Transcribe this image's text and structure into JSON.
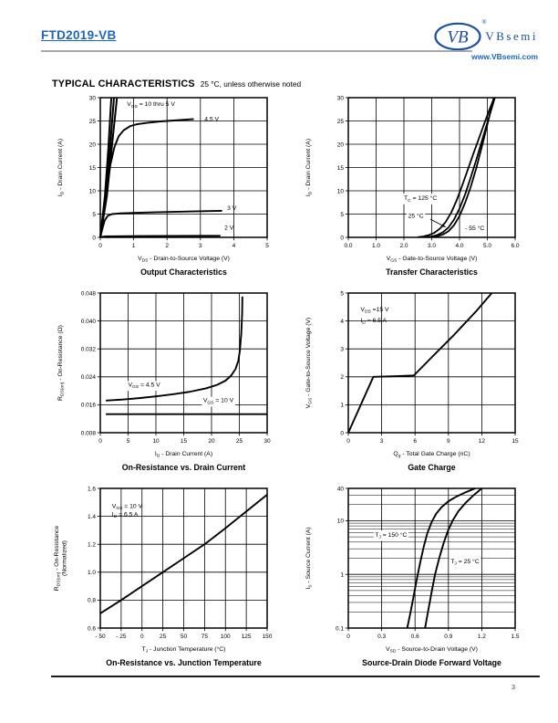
{
  "colors": {
    "link_blue": "#1a66c2",
    "logo_blue": "#1d4f9d",
    "rule_gray": "#a7a9ac",
    "chart_ink": "#000000",
    "page_bg": "#ffffff"
  },
  "header": {
    "part_number": "FTD2019-VB",
    "logo": {
      "mark": "VB",
      "name": "VBsemi",
      "registered": "®",
      "url": "www.VBsemi.com"
    }
  },
  "section": {
    "title": "TYPICAL CHARACTERISTICS",
    "subtitle": "25 °C, unless otherwise noted"
  },
  "footer": {
    "page_number": "3"
  },
  "chart_data": [
    {
      "type": "line",
      "name": "output-characteristics",
      "title": "Output Characteristics",
      "xlabel": "V~DS~ - Drain-to-Source Voltage (V)",
      "ylabel": "I~D~ - Drain Current (A)",
      "xlim": [
        0,
        5
      ],
      "ylim": [
        0,
        30
      ],
      "ylog": false,
      "xticks": [
        0,
        1,
        2,
        3,
        4,
        5
      ],
      "xtick_labels": [
        "0",
        "1",
        "2",
        "3",
        "4",
        "5"
      ],
      "yticks": [
        0,
        5,
        10,
        15,
        20,
        25,
        30
      ],
      "ytick_labels": [
        "0",
        "5",
        "10",
        "15",
        "20",
        "25",
        "30"
      ],
      "yminor": [],
      "series": [
        {
          "name": "VGS = 10 thru 5 V (a)",
          "width": 2.0,
          "points": [
            [
              0,
              0
            ],
            [
              0.14,
              9
            ],
            [
              0.24,
              19
            ],
            [
              0.33,
              30
            ]
          ]
        },
        {
          "name": "VGS = 10 thru 5 V (b)",
          "width": 2.0,
          "points": [
            [
              0,
              0
            ],
            [
              0.17,
              9
            ],
            [
              0.29,
              19
            ],
            [
              0.41,
              30
            ]
          ]
        },
        {
          "name": "VGS = 10 thru 5 V (c)",
          "width": 2.0,
          "points": [
            [
              0,
              0
            ],
            [
              0.2,
              9
            ],
            [
              0.34,
              19
            ],
            [
              0.5,
              30
            ]
          ]
        },
        {
          "name": "VGS = 4.5 V",
          "width": 1.9,
          "points": [
            [
              0,
              0
            ],
            [
              0.1,
              5
            ],
            [
              0.2,
              10.5
            ],
            [
              0.3,
              15.5
            ],
            [
              0.42,
              19.3
            ],
            [
              0.55,
              21.7
            ],
            [
              0.7,
              23
            ],
            [
              0.9,
              23.9
            ],
            [
              1.1,
              24.3
            ],
            [
              1.4,
              24.6
            ],
            [
              1.8,
              24.9
            ],
            [
              2.2,
              25.1
            ],
            [
              2.6,
              25.3
            ],
            [
              2.8,
              25.4
            ]
          ]
        },
        {
          "name": "VGS = 3 V",
          "width": 1.9,
          "points": [
            [
              0,
              0
            ],
            [
              0.06,
              1.8
            ],
            [
              0.13,
              3.6
            ],
            [
              0.22,
              4.6
            ],
            [
              0.35,
              5.0
            ],
            [
              0.6,
              5.15
            ],
            [
              1.0,
              5.25
            ],
            [
              1.6,
              5.38
            ],
            [
              2.2,
              5.48
            ],
            [
              2.8,
              5.58
            ],
            [
              3.3,
              5.65
            ],
            [
              3.65,
              5.7
            ]
          ]
        },
        {
          "name": "VGS = 2 V",
          "width": 1.9,
          "points": [
            [
              0,
              0
            ],
            [
              0.05,
              0.12
            ],
            [
              0.15,
              0.2
            ],
            [
              0.5,
              0.24
            ],
            [
              1.2,
              0.27
            ],
            [
              2.2,
              0.3
            ],
            [
              3.0,
              0.32
            ],
            [
              3.6,
              0.34
            ]
          ]
        }
      ],
      "annotations": [
        {
          "text": "V~GS~ = 10 thru 5 V",
          "x": 0.8,
          "y": 28.2,
          "bg": false
        },
        {
          "text": "4.5 V",
          "x": 3.12,
          "y": 25.0,
          "bg": false
        },
        {
          "text": "3 V",
          "x": 3.8,
          "y": 5.85,
          "bg": false
        },
        {
          "text": "2 V",
          "x": 3.72,
          "y": 1.7,
          "bg": false
        }
      ],
      "arrows": []
    },
    {
      "type": "line",
      "name": "transfer-characteristics",
      "title": "Transfer Characteristics",
      "xlabel": "V~GS~ - Gate-to-Source Voltage (V)",
      "ylabel": "I~D~ - Drain Current (A)",
      "xlim": [
        0,
        6
      ],
      "ylim": [
        0,
        30
      ],
      "ylog": false,
      "xticks": [
        0,
        1,
        2,
        3,
        4,
        5,
        6
      ],
      "xtick_labels": [
        "0.0",
        "1.0",
        "2.0",
        "3.0",
        "4.0",
        "5.0",
        "6.0"
      ],
      "yticks": [
        0,
        5,
        10,
        15,
        20,
        25,
        30
      ],
      "ytick_labels": [
        "0",
        "5",
        "10",
        "15",
        "20",
        "25",
        "30"
      ],
      "yminor": [],
      "series": [
        {
          "name": "TC = 125 °C",
          "width": 1.8,
          "points": [
            [
              2.5,
              0.05
            ],
            [
              2.7,
              0.2
            ],
            [
              2.9,
              0.5
            ],
            [
              3.1,
              1.0
            ],
            [
              3.3,
              1.9
            ],
            [
              3.5,
              3.3
            ],
            [
              3.7,
              5.3
            ],
            [
              3.9,
              8
            ],
            [
              4.1,
              11.2
            ],
            [
              4.3,
              14.6
            ],
            [
              4.5,
              18
            ],
            [
              4.7,
              21.3
            ],
            [
              4.9,
              24.6
            ],
            [
              5.1,
              27.8
            ],
            [
              5.25,
              30
            ]
          ]
        },
        {
          "name": "TC = 25 °C",
          "width": 1.8,
          "points": [
            [
              2.8,
              0.05
            ],
            [
              3.0,
              0.2
            ],
            [
              3.2,
              0.5
            ],
            [
              3.4,
              1.1
            ],
            [
              3.6,
              2.1
            ],
            [
              3.8,
              3.8
            ],
            [
              4.0,
              6.2
            ],
            [
              4.2,
              9.2
            ],
            [
              4.4,
              12.8
            ],
            [
              4.6,
              16.6
            ],
            [
              4.8,
              20.6
            ],
            [
              5.0,
              24.6
            ],
            [
              5.2,
              28.6
            ],
            [
              5.27,
              30
            ]
          ]
        },
        {
          "name": "TC = -55 °C",
          "width": 1.8,
          "points": [
            [
              3.0,
              0.05
            ],
            [
              3.2,
              0.25
            ],
            [
              3.4,
              0.6
            ],
            [
              3.6,
              1.3
            ],
            [
              3.8,
              2.6
            ],
            [
              4.0,
              4.6
            ],
            [
              4.2,
              7.4
            ],
            [
              4.4,
              10.8
            ],
            [
              4.6,
              14.8
            ],
            [
              4.8,
              19.4
            ],
            [
              5.0,
              24.2
            ],
            [
              5.2,
              29.2
            ],
            [
              5.23,
              30
            ]
          ]
        }
      ],
      "annotations": [
        {
          "text": "T~C~ = 125 °C",
          "x": 2.0,
          "y": 8.0,
          "bg": true
        },
        {
          "text": "25 °C",
          "x": 2.15,
          "y": 4.2,
          "bg": true
        },
        {
          "text": "- 55 °C",
          "x": 4.2,
          "y": 1.6,
          "bg": true
        }
      ],
      "arrows": [
        {
          "x1": 2.95,
          "y1": 3.9,
          "x2": 3.5,
          "y2": 2.2
        }
      ]
    },
    {
      "type": "line",
      "name": "on-resistance-vs-drain-current",
      "title": "On-Resistance vs. Drain Current",
      "xlabel": "I~D~ - Drain Current (A)",
      "ylabel": "R~DS(on)~ - On-Resistance (Ω)",
      "xlim": [
        0,
        30
      ],
      "ylim": [
        0.008,
        0.048
      ],
      "ylog": false,
      "xticks": [
        0,
        5,
        10,
        15,
        20,
        25,
        30
      ],
      "xtick_labels": [
        "0",
        "5",
        "10",
        "15",
        "20",
        "25",
        "30"
      ],
      "yticks": [
        0.008,
        0.016,
        0.024,
        0.032,
        0.04,
        0.048
      ],
      "ytick_labels": [
        "0.008",
        "0.016",
        "0.024",
        "0.032",
        "0.040",
        "0.048"
      ],
      "yminor": [],
      "series": [
        {
          "name": "VGS = 4.5 V",
          "width": 1.9,
          "points": [
            [
              1,
              0.0172
            ],
            [
              4,
              0.0175
            ],
            [
              7,
              0.0179
            ],
            [
              10,
              0.0184
            ],
            [
              13,
              0.019
            ],
            [
              16,
              0.0197
            ],
            [
              19,
              0.0207
            ],
            [
              21,
              0.0217
            ],
            [
              22.5,
              0.0229
            ],
            [
              23.5,
              0.0243
            ],
            [
              24.3,
              0.0262
            ],
            [
              24.8,
              0.0285
            ],
            [
              25.1,
              0.0315
            ],
            [
              25.35,
              0.0365
            ],
            [
              25.5,
              0.042
            ],
            [
              25.55,
              0.047
            ]
          ]
        },
        {
          "name": "VGS = 10 V",
          "width": 1.9,
          "points": [
            [
              1,
              0.0133
            ],
            [
              30,
              0.0133
            ]
          ]
        }
      ],
      "annotations": [
        {
          "text": "V~GS~ = 4.5 V",
          "x": 5.0,
          "y": 0.0212,
          "bg": true
        },
        {
          "text": "V~GS~ = 10 V",
          "x": 18.5,
          "y": 0.0167,
          "bg": true
        }
      ],
      "arrows": []
    },
    {
      "type": "line",
      "name": "gate-charge",
      "title": "Gate Charge",
      "xlabel": "Q~g~ - Total Gate Charge (nC)",
      "ylabel": "V~GS~ - Gate-to-Source Voltage (V)",
      "xlim": [
        0,
        15
      ],
      "ylim": [
        0,
        5
      ],
      "ylog": false,
      "xticks": [
        0,
        3,
        6,
        9,
        12,
        15
      ],
      "xtick_labels": [
        "0",
        "3",
        "6",
        "9",
        "12",
        "15"
      ],
      "yticks": [
        0,
        1,
        2,
        3,
        4,
        5
      ],
      "ytick_labels": [
        "0",
        "1",
        "2",
        "3",
        "4",
        "5"
      ],
      "yminor": [],
      "series": [
        {
          "name": "gate charge curve",
          "width": 1.9,
          "points": [
            [
              0,
              0
            ],
            [
              2.25,
              2.0
            ],
            [
              4.0,
              2.02
            ],
            [
              5.9,
              2.05
            ],
            [
              7.5,
              2.7
            ],
            [
              9.5,
              3.5
            ],
            [
              11.5,
              4.35
            ],
            [
              12.9,
              5.0
            ]
          ]
        }
      ],
      "annotations": [
        {
          "text": "V~DS~ =15 V",
          "x": 1.1,
          "y": 4.35,
          "bg": false
        },
        {
          "text": "I~D~ = 6.5 A",
          "x": 1.1,
          "y": 3.95,
          "bg": false
        }
      ],
      "arrows": []
    },
    {
      "type": "line",
      "name": "on-resistance-vs-junction-temperature",
      "title": "On-Resistance vs. Junction Temperature",
      "xlabel": "T~J~ - Junction Temperature (°C)",
      "ylabel": "R~DS(on)~ - On-Resistance\n(Normalized)",
      "xlim": [
        -50,
        150
      ],
      "ylim": [
        0.6,
        1.6
      ],
      "ylog": false,
      "xticks": [
        -50,
        -25,
        0,
        25,
        50,
        75,
        100,
        125,
        150
      ],
      "xtick_labels": [
        "- 50",
        "- 25",
        "0",
        "25",
        "50",
        "75",
        "100",
        "125",
        "150"
      ],
      "yticks": [
        0.6,
        0.8,
        1.0,
        1.2,
        1.4,
        1.6
      ],
      "ytick_labels": [
        "0.6",
        "0.8",
        "1.0",
        "1.2",
        "1.4",
        "1.6"
      ],
      "yminor": [],
      "series": [
        {
          "name": "normalized RDS(on)",
          "width": 1.9,
          "points": [
            [
              -50,
              0.705
            ],
            [
              -25,
              0.8
            ],
            [
              0,
              0.9
            ],
            [
              25,
              1.0
            ],
            [
              50,
              1.1
            ],
            [
              75,
              1.2
            ],
            [
              100,
              1.315
            ],
            [
              125,
              1.435
            ],
            [
              150,
              1.555
            ]
          ]
        }
      ],
      "annotations": [
        {
          "text": "V~GS~ = 10 V",
          "x": -36,
          "y": 1.46,
          "bg": false
        },
        {
          "text": "I~D~ = 6.5 A",
          "x": -36,
          "y": 1.4,
          "bg": false
        }
      ],
      "arrows": []
    },
    {
      "type": "line",
      "name": "source-drain-diode-forward-voltage",
      "title": "Source-Drain Diode Forward Voltage",
      "xlabel": "V~SD~ - Source-to-Drain Voltage (V)",
      "ylabel": "I~S~ - Source Current (A)",
      "xlim": [
        0,
        1.5
      ],
      "ylim": [
        0.1,
        40
      ],
      "ylog": true,
      "xticks": [
        0,
        0.3,
        0.6,
        0.9,
        1.2,
        1.5
      ],
      "xtick_labels": [
        "0",
        "0.3",
        "0.6",
        "0.9",
        "1.2",
        "1.5"
      ],
      "yticks": [
        0.1,
        1,
        10,
        40
      ],
      "ytick_labels": [
        "0.1",
        "1",
        "10",
        "40"
      ],
      "yminor": [
        0.2,
        0.3,
        0.4,
        0.5,
        0.6,
        0.7,
        0.8,
        0.9,
        2,
        3,
        4,
        5,
        6,
        7,
        8,
        9,
        20,
        30
      ],
      "series": [
        {
          "name": "TJ = 150 °C",
          "width": 1.9,
          "points": [
            [
              0.53,
              0.1
            ],
            [
              0.56,
              0.2
            ],
            [
              0.59,
              0.42
            ],
            [
              0.62,
              0.9
            ],
            [
              0.65,
              1.8
            ],
            [
              0.68,
              3.4
            ],
            [
              0.71,
              5.8
            ],
            [
              0.75,
              9.5
            ],
            [
              0.79,
              13.5
            ],
            [
              0.84,
              18
            ],
            [
              0.9,
              23
            ],
            [
              0.97,
              28
            ],
            [
              1.05,
              33.5
            ],
            [
              1.14,
              40
            ]
          ]
        },
        {
          "name": "TJ = 25 °C",
          "width": 1.9,
          "points": [
            [
              0.69,
              0.1
            ],
            [
              0.72,
              0.22
            ],
            [
              0.75,
              0.48
            ],
            [
              0.78,
              1.0
            ],
            [
              0.82,
              2.1
            ],
            [
              0.86,
              4.0
            ],
            [
              0.9,
              6.8
            ],
            [
              0.94,
              10.2
            ],
            [
              0.99,
              15
            ],
            [
              1.05,
              21
            ],
            [
              1.12,
              29
            ],
            [
              1.2,
              40
            ]
          ]
        }
      ],
      "annotations": [
        {
          "text": "T~J~ = 150 °C",
          "x": 0.24,
          "y": 5.0,
          "bg": true
        },
        {
          "text": "T~J~ = 25 °C",
          "x": 0.92,
          "y": 1.62,
          "bg": true
        }
      ],
      "arrows": []
    }
  ]
}
